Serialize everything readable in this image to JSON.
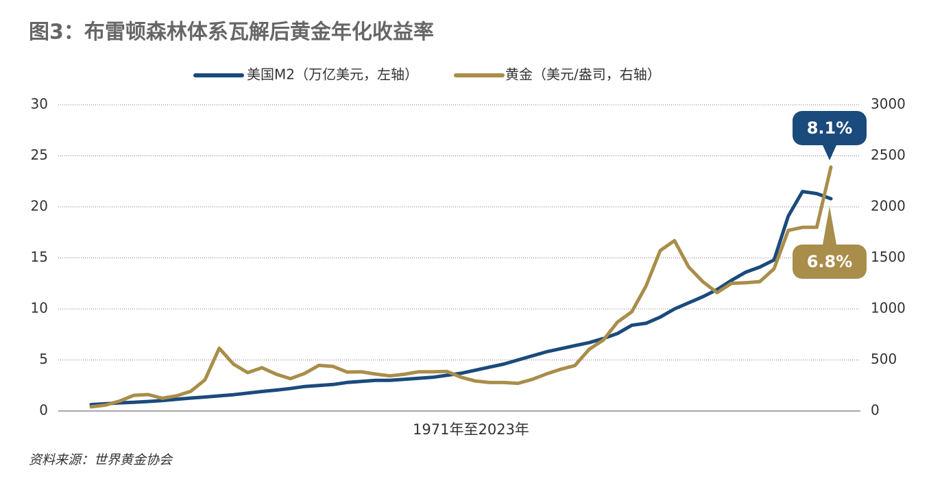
{
  "chart_data": {
    "type": "line",
    "title": "图3：布雷顿森林体系瓦解后黄金年化收益率",
    "xlabel": "1971年至2023年",
    "source": "资料来源：世界黄金协会",
    "grid": true,
    "ylim": [
      0,
      30
    ],
    "yticks": [
      0,
      5,
      10,
      15,
      20,
      25,
      30
    ],
    "y2lim": [
      0,
      3000
    ],
    "y2ticks": [
      0,
      500,
      1000,
      1500,
      2000,
      2500,
      3000
    ],
    "series": [
      {
        "name": "美国M2（万亿美元，左轴）",
        "color": "#1b4a7c",
        "values": [
          0.63,
          0.71,
          0.8,
          0.86,
          0.93,
          1.02,
          1.15,
          1.27,
          1.37,
          1.48,
          1.6,
          1.75,
          1.91,
          2.05,
          2.2,
          2.4,
          2.5,
          2.6,
          2.8,
          2.9,
          3.0,
          3.0,
          3.1,
          3.2,
          3.3,
          3.5,
          3.7,
          4.0,
          4.3,
          4.6,
          5.0,
          5.4,
          5.8,
          6.1,
          6.4,
          6.7,
          7.1,
          7.6,
          8.4,
          8.6,
          9.2,
          10.0,
          10.6,
          11.2,
          11.9,
          12.8,
          13.6,
          14.1,
          14.8,
          19.1,
          21.5,
          21.3,
          20.8
        ]
      },
      {
        "name": "黄金（美元/盎司，右轴）",
        "color": "#a98d4a",
        "axis": "y2",
        "values": [
          41,
          58,
          97,
          154,
          161,
          125,
          148,
          193,
          306,
          615,
          460,
          376,
          424,
          361,
          317,
          368,
          447,
          437,
          381,
          384,
          362,
          344,
          360,
          384,
          384,
          388,
          331,
          294,
          279,
          279,
          271,
          310,
          363,
          409,
          445,
          604,
          695,
          872,
          972,
          1225,
          1572,
          1669,
          1411,
          1266,
          1160,
          1251,
          1257,
          1268,
          1393,
          1770,
          1799,
          1800,
          2390
        ]
      }
    ],
    "annotations": [
      "8.1%",
      "6.8%"
    ]
  }
}
